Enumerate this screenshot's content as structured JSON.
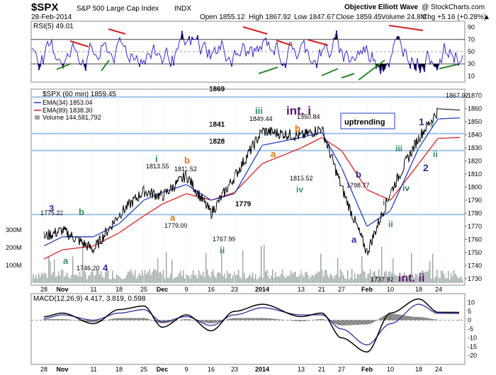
{
  "header": {
    "symbol": "$SPX",
    "name": "S&P 500 Large Cap Index",
    "exchange": "INDX",
    "date": "28-Feb-2014",
    "open": "Open 1855.12",
    "high": "High 1867.92",
    "low": "Low 1847.67",
    "close": "Close 1859.45",
    "volume": "Volume 24.8M",
    "change": "Chg +5.16 (+0.28%)",
    "change_arrow": "▲",
    "branding": "Objective Elliott Wave",
    "credit": "@ StockCharts.com"
  },
  "colors": {
    "price": "#000000",
    "ema34": "#1f3fbf",
    "ema89": "#d42020",
    "volume": "#9aa3a3",
    "rsi": "#3a2bc9",
    "level_lines": "#9fc4ea",
    "macd_hist": "#707070",
    "wave_blue": "#2b2f9a",
    "wave_orange": "#e07010",
    "wave_green": "#2f8a62",
    "wave_purple": "#5a1a6a",
    "trend_red": "#d42020",
    "trend_green": "#2a8a2a"
  },
  "chart_data": [
    {
      "type": "line",
      "panel": "rsi",
      "title": "RSI(5) 49.01",
      "ylim": [
        0,
        100
      ],
      "yticks": [
        10,
        30,
        50,
        70,
        90
      ],
      "reference_lines": [
        30,
        70
      ]
    },
    {
      "type": "line",
      "panel": "price",
      "title": "$SPX (60 min) 1859.45",
      "ylim": [
        1725,
        1875
      ],
      "yticks": [
        1730,
        1740,
        1750,
        1760,
        1770,
        1780,
        1790,
        1800,
        1810,
        1820,
        1830,
        1840,
        1850,
        1860,
        1870
      ],
      "xlabels": [
        "28",
        "Nov",
        "11",
        "18",
        "25",
        "Dec",
        "9",
        "16",
        "23",
        "2014",
        "13",
        "21",
        "27",
        "Feb",
        "10",
        "18",
        "24"
      ],
      "volume_ticks": [
        "100M",
        "200M",
        "300M"
      ],
      "series": [
        {
          "name": "$SPX (60 min) 1859.45",
          "x": [
            "28",
            "Nov",
            "11",
            "18",
            "25",
            "Dec",
            "9",
            "16",
            "23",
            "2014",
            "13",
            "21",
            "27",
            "Feb",
            "10",
            "18",
            "24"
          ],
          "values": [
            1762,
            1767,
            1752,
            1779,
            1797,
            1793,
            1809,
            1780,
            1808,
            1843,
            1839,
            1845,
            1800,
            1750,
            1796,
            1838,
            1859
          ]
        },
        {
          "name": "EMA(34) 1853.04",
          "values": [
            1755,
            1762,
            1762,
            1772,
            1790,
            1796,
            1802,
            1790,
            1795,
            1832,
            1838,
            1842,
            1815,
            1770,
            1782,
            1830,
            1853
          ]
        },
        {
          "name": "EMA(89) 1838.30",
          "values": [
            1745,
            1752,
            1755,
            1765,
            1778,
            1787,
            1795,
            1790,
            1796,
            1818,
            1830,
            1838,
            1828,
            1798,
            1790,
            1818,
            1838
          ]
        },
        {
          "name": "Volume 144,581,792"
        }
      ],
      "price_points": [
        {
          "label": "1775.22",
          "value": 1775.22
        },
        {
          "label": "1746.20",
          "value": 1746.2
        },
        {
          "label": "1813.55",
          "value": 1813.55
        },
        {
          "label": "1811.52",
          "value": 1811.52
        },
        {
          "label": "1779.09",
          "value": 1779.09
        },
        {
          "label": "1767.99",
          "value": 1767.99
        },
        {
          "label": "1849.44",
          "value": 1849.44
        },
        {
          "label": "1850.84",
          "value": 1850.84
        },
        {
          "label": "1815.52",
          "value": 1815.52
        },
        {
          "label": "1798.77",
          "value": 1798.77
        },
        {
          "label": "1737.92",
          "value": 1737.92
        },
        {
          "label": "1867.92",
          "value": 1867.92
        }
      ],
      "levels": [
        {
          "label": "1869",
          "value": 1869
        },
        {
          "label": "1841",
          "value": 1841
        },
        {
          "label": "1828",
          "value": 1828
        },
        {
          "label": "1779",
          "value": 1779
        }
      ],
      "annotations": [
        "3",
        "b",
        "a",
        "4",
        "i",
        "b",
        "a",
        "ii",
        "iii",
        "int. i",
        "b",
        "a",
        "iv",
        "b",
        "a",
        "i",
        "ii",
        "iii",
        "iv",
        "1",
        "2",
        "i",
        "ii",
        "int. ii",
        "uptrending"
      ]
    },
    {
      "type": "line",
      "panel": "macd",
      "title": "MACD(12,26,9) 4.417, 3.819, 0.598",
      "ylim": [
        -25,
        15
      ],
      "yticks": [
        10,
        5,
        0,
        -5,
        -10,
        -15,
        -20
      ],
      "series": [
        {
          "name": "MACD",
          "values": [
            2,
            4,
            -2,
            6,
            8,
            -4,
            3,
            -6,
            5,
            9,
            2,
            4,
            -10,
            -18,
            4,
            12,
            4.417
          ]
        },
        {
          "name": "Signal",
          "values": [
            1,
            3,
            0,
            4,
            6,
            -1,
            2,
            -3,
            3,
            7,
            3,
            3,
            -5,
            -14,
            -2,
            9,
            3.819
          ]
        }
      ]
    }
  ]
}
